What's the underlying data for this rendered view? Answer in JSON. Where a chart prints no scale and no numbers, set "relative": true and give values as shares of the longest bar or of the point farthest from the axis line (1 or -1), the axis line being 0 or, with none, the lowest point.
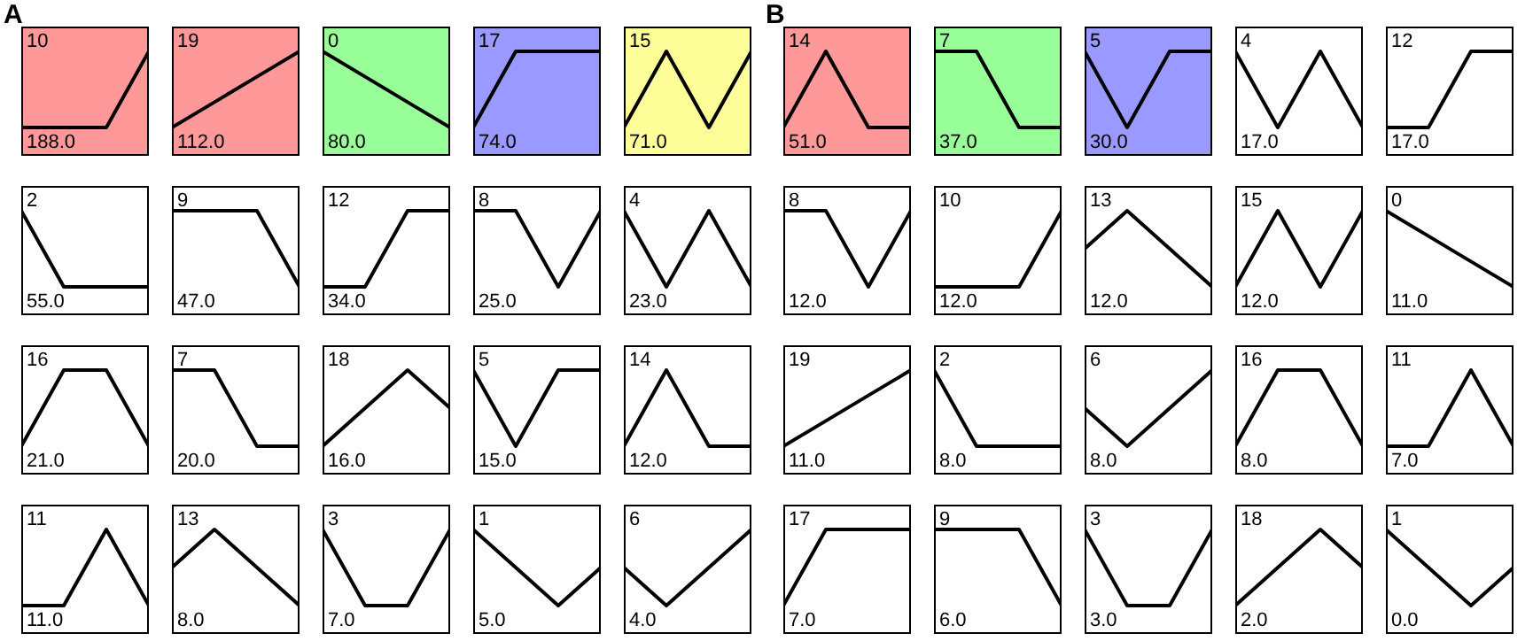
{
  "chart_data": [
    {
      "type": "line",
      "title": "A",
      "relative": true,
      "categories": [
        null,
        null,
        null,
        null
      ],
      "series": [
        {
          "color": "#000000",
          "values": [
            0,
            0,
            0,
            1
          ]
        }
      ],
      "annotations": [
        "10",
        "188.0"
      ],
      "legend": false,
      "marker": "none"
    },
    {
      "type": "line",
      "relative": true,
      "categories": [
        null,
        null,
        null,
        null
      ],
      "series": [
        {
          "color": "#000000",
          "values": [
            0,
            0.333,
            0.667,
            1
          ]
        }
      ],
      "annotations": [
        "19",
        "112.0"
      ],
      "legend": false,
      "marker": "none"
    },
    {
      "type": "line",
      "relative": true,
      "categories": [
        null,
        null,
        null,
        null
      ],
      "series": [
        {
          "color": "#000000",
          "values": [
            1,
            0.667,
            0.333,
            0
          ]
        }
      ],
      "annotations": [
        "0",
        "80.0"
      ],
      "legend": false,
      "marker": "none"
    },
    {
      "type": "line",
      "relative": true,
      "categories": [
        null,
        null,
        null,
        null
      ],
      "series": [
        {
          "color": "#000000",
          "values": [
            0,
            1,
            1,
            1
          ]
        }
      ],
      "annotations": [
        "17",
        "74.0"
      ],
      "legend": false,
      "marker": "none"
    },
    {
      "type": "line",
      "relative": true,
      "categories": [
        null,
        null,
        null,
        null
      ],
      "series": [
        {
          "color": "#000000",
          "values": [
            0,
            1,
            0,
            1
          ]
        }
      ],
      "annotations": [
        "15",
        "71.0"
      ],
      "legend": false,
      "marker": "none"
    },
    {
      "type": "line",
      "relative": true,
      "categories": [
        null,
        null,
        null,
        null
      ],
      "series": [
        {
          "color": "#000000",
          "values": [
            1,
            0,
            0,
            0
          ]
        }
      ],
      "annotations": [
        "2",
        "55.0"
      ],
      "legend": false,
      "marker": "none"
    },
    {
      "type": "line",
      "relative": true,
      "categories": [
        null,
        null,
        null,
        null
      ],
      "series": [
        {
          "color": "#000000",
          "values": [
            1,
            1,
            1,
            0
          ]
        }
      ],
      "annotations": [
        "9",
        "47.0"
      ],
      "legend": false,
      "marker": "none"
    },
    {
      "type": "line",
      "relative": true,
      "categories": [
        null,
        null,
        null,
        null
      ],
      "series": [
        {
          "color": "#000000",
          "values": [
            0,
            0,
            1,
            1
          ]
        }
      ],
      "annotations": [
        "12",
        "34.0"
      ],
      "legend": false,
      "marker": "none"
    },
    {
      "type": "line",
      "relative": true,
      "categories": [
        null,
        null,
        null,
        null
      ],
      "series": [
        {
          "color": "#000000",
          "values": [
            1,
            1,
            0,
            1
          ]
        }
      ],
      "annotations": [
        "8",
        "25.0"
      ],
      "legend": false,
      "marker": "none"
    },
    {
      "type": "line",
      "relative": true,
      "categories": [
        null,
        null,
        null,
        null
      ],
      "series": [
        {
          "color": "#000000",
          "values": [
            1,
            0,
            1,
            0
          ]
        }
      ],
      "annotations": [
        "4",
        "23.0"
      ],
      "legend": false,
      "marker": "none"
    },
    {
      "type": "line",
      "relative": true,
      "categories": [
        null,
        null,
        null,
        null
      ],
      "series": [
        {
          "color": "#000000",
          "values": [
            0,
            1,
            1,
            0
          ]
        }
      ],
      "annotations": [
        "16",
        "21.0"
      ],
      "legend": false,
      "marker": "none"
    },
    {
      "type": "line",
      "relative": true,
      "categories": [
        null,
        null,
        null,
        null
      ],
      "series": [
        {
          "color": "#000000",
          "values": [
            1,
            1,
            0,
            0
          ]
        }
      ],
      "annotations": [
        "7",
        "20.0"
      ],
      "legend": false,
      "marker": "none"
    },
    {
      "type": "line",
      "relative": true,
      "categories": [
        null,
        null,
        null,
        null
      ],
      "series": [
        {
          "color": "#000000",
          "values": [
            0,
            0.5,
            1,
            0.5
          ]
        }
      ],
      "annotations": [
        "18",
        "16.0"
      ],
      "legend": false,
      "marker": "none"
    },
    {
      "type": "line",
      "relative": true,
      "categories": [
        null,
        null,
        null,
        null
      ],
      "series": [
        {
          "color": "#000000",
          "values": [
            1,
            0,
            1,
            1
          ]
        }
      ],
      "annotations": [
        "5",
        "15.0"
      ],
      "legend": false,
      "marker": "none"
    },
    {
      "type": "line",
      "relative": true,
      "categories": [
        null,
        null,
        null,
        null
      ],
      "series": [
        {
          "color": "#000000",
          "values": [
            0,
            1,
            0,
            0
          ]
        }
      ],
      "annotations": [
        "14",
        "12.0"
      ],
      "legend": false,
      "marker": "none"
    },
    {
      "type": "line",
      "relative": true,
      "categories": [
        null,
        null,
        null,
        null
      ],
      "series": [
        {
          "color": "#000000",
          "values": [
            0,
            0,
            1,
            0
          ]
        }
      ],
      "annotations": [
        "11",
        "11.0"
      ],
      "legend": false,
      "marker": "none"
    },
    {
      "type": "line",
      "relative": true,
      "categories": [
        null,
        null,
        null,
        null
      ],
      "series": [
        {
          "color": "#000000",
          "values": [
            0.5,
            1,
            0.5,
            0
          ]
        }
      ],
      "annotations": [
        "13",
        "8.0"
      ],
      "legend": false,
      "marker": "none"
    },
    {
      "type": "line",
      "relative": true,
      "categories": [
        null,
        null,
        null,
        null
      ],
      "series": [
        {
          "color": "#000000",
          "values": [
            1,
            0,
            0,
            1
          ]
        }
      ],
      "annotations": [
        "3",
        "7.0"
      ],
      "legend": false,
      "marker": "none"
    },
    {
      "type": "line",
      "relative": true,
      "categories": [
        null,
        null,
        null,
        null
      ],
      "series": [
        {
          "color": "#000000",
          "values": [
            1,
            0.5,
            0,
            0.5
          ]
        }
      ],
      "annotations": [
        "1",
        "5.0"
      ],
      "legend": false,
      "marker": "none"
    },
    {
      "type": "line",
      "relative": true,
      "categories": [
        null,
        null,
        null,
        null
      ],
      "series": [
        {
          "color": "#000000",
          "values": [
            0.5,
            0,
            0.5,
            1
          ]
        }
      ],
      "annotations": [
        "6",
        "4.0"
      ],
      "legend": false,
      "marker": "none"
    },
    {
      "type": "line",
      "title": "B",
      "relative": true,
      "categories": [
        null,
        null,
        null,
        null
      ],
      "series": [
        {
          "color": "#000000",
          "values": [
            0,
            1,
            0,
            0
          ]
        }
      ],
      "annotations": [
        "14",
        "51.0"
      ],
      "legend": false,
      "marker": "none"
    },
    {
      "type": "line",
      "relative": true,
      "categories": [
        null,
        null,
        null,
        null
      ],
      "series": [
        {
          "color": "#000000",
          "values": [
            1,
            1,
            0,
            0
          ]
        }
      ],
      "annotations": [
        "7",
        "37.0"
      ],
      "legend": false,
      "marker": "none"
    },
    {
      "type": "line",
      "relative": true,
      "categories": [
        null,
        null,
        null,
        null
      ],
      "series": [
        {
          "color": "#000000",
          "values": [
            1,
            0,
            1,
            1
          ]
        }
      ],
      "annotations": [
        "5",
        "30.0"
      ],
      "legend": false,
      "marker": "none"
    },
    {
      "type": "line",
      "relative": true,
      "categories": [
        null,
        null,
        null,
        null
      ],
      "series": [
        {
          "color": "#000000",
          "values": [
            1,
            0,
            1,
            0
          ]
        }
      ],
      "annotations": [
        "4",
        "17.0"
      ],
      "legend": false,
      "marker": "none"
    },
    {
      "type": "line",
      "relative": true,
      "categories": [
        null,
        null,
        null,
        null
      ],
      "series": [
        {
          "color": "#000000",
          "values": [
            0,
            0,
            1,
            1
          ]
        }
      ],
      "annotations": [
        "12",
        "17.0"
      ],
      "legend": false,
      "marker": "none"
    },
    {
      "type": "line",
      "relative": true,
      "categories": [
        null,
        null,
        null,
        null
      ],
      "series": [
        {
          "color": "#000000",
          "values": [
            1,
            1,
            0,
            1
          ]
        }
      ],
      "annotations": [
        "8",
        "12.0"
      ],
      "legend": false,
      "marker": "none"
    },
    {
      "type": "line",
      "relative": true,
      "categories": [
        null,
        null,
        null,
        null
      ],
      "series": [
        {
          "color": "#000000",
          "values": [
            0,
            0,
            0,
            1
          ]
        }
      ],
      "annotations": [
        "10",
        "12.0"
      ],
      "legend": false,
      "marker": "none"
    },
    {
      "type": "line",
      "relative": true,
      "categories": [
        null,
        null,
        null,
        null
      ],
      "series": [
        {
          "color": "#000000",
          "values": [
            0.5,
            1,
            0.5,
            0
          ]
        }
      ],
      "annotations": [
        "13",
        "12.0"
      ],
      "legend": false,
      "marker": "none"
    },
    {
      "type": "line",
      "relative": true,
      "categories": [
        null,
        null,
        null,
        null
      ],
      "series": [
        {
          "color": "#000000",
          "values": [
            0,
            1,
            0,
            1
          ]
        }
      ],
      "annotations": [
        "15",
        "12.0"
      ],
      "legend": false,
      "marker": "none"
    },
    {
      "type": "line",
      "relative": true,
      "categories": [
        null,
        null,
        null,
        null
      ],
      "series": [
        {
          "color": "#000000",
          "values": [
            1,
            0.667,
            0.333,
            0
          ]
        }
      ],
      "annotations": [
        "0",
        "11.0"
      ],
      "legend": false,
      "marker": "none"
    },
    {
      "type": "line",
      "relative": true,
      "categories": [
        null,
        null,
        null,
        null
      ],
      "series": [
        {
          "color": "#000000",
          "values": [
            0,
            0.333,
            0.667,
            1
          ]
        }
      ],
      "annotations": [
        "19",
        "11.0"
      ],
      "legend": false,
      "marker": "none"
    },
    {
      "type": "line",
      "relative": true,
      "categories": [
        null,
        null,
        null,
        null
      ],
      "series": [
        {
          "color": "#000000",
          "values": [
            1,
            0,
            0,
            0
          ]
        }
      ],
      "annotations": [
        "2",
        "8.0"
      ],
      "legend": false,
      "marker": "none"
    },
    {
      "type": "line",
      "relative": true,
      "categories": [
        null,
        null,
        null,
        null
      ],
      "series": [
        {
          "color": "#000000",
          "values": [
            0.5,
            0,
            0.5,
            1
          ]
        }
      ],
      "annotations": [
        "6",
        "8.0"
      ],
      "legend": false,
      "marker": "none"
    },
    {
      "type": "line",
      "relative": true,
      "categories": [
        null,
        null,
        null,
        null
      ],
      "series": [
        {
          "color": "#000000",
          "values": [
            0,
            1,
            1,
            0
          ]
        }
      ],
      "annotations": [
        "16",
        "8.0"
      ],
      "legend": false,
      "marker": "none"
    },
    {
      "type": "line",
      "relative": true,
      "categories": [
        null,
        null,
        null,
        null
      ],
      "series": [
        {
          "color": "#000000",
          "values": [
            0,
            0,
            1,
            0
          ]
        }
      ],
      "annotations": [
        "11",
        "7.0"
      ],
      "legend": false,
      "marker": "none"
    },
    {
      "type": "line",
      "relative": true,
      "categories": [
        null,
        null,
        null,
        null
      ],
      "series": [
        {
          "color": "#000000",
          "values": [
            0,
            1,
            1,
            1
          ]
        }
      ],
      "annotations": [
        "17",
        "7.0"
      ],
      "legend": false,
      "marker": "none"
    },
    {
      "type": "line",
      "relative": true,
      "categories": [
        null,
        null,
        null,
        null
      ],
      "series": [
        {
          "color": "#000000",
          "values": [
            1,
            1,
            1,
            0
          ]
        }
      ],
      "annotations": [
        "9",
        "6.0"
      ],
      "legend": false,
      "marker": "none"
    },
    {
      "type": "line",
      "relative": true,
      "categories": [
        null,
        null,
        null,
        null
      ],
      "series": [
        {
          "color": "#000000",
          "values": [
            1,
            0,
            0,
            1
          ]
        }
      ],
      "annotations": [
        "3",
        "3.0"
      ],
      "legend": false,
      "marker": "none"
    },
    {
      "type": "line",
      "relative": true,
      "categories": [
        null,
        null,
        null,
        null
      ],
      "series": [
        {
          "color": "#000000",
          "values": [
            0,
            0.5,
            1,
            0.5
          ]
        }
      ],
      "annotations": [
        "18",
        "2.0"
      ],
      "legend": false,
      "marker": "none"
    },
    {
      "type": "line",
      "relative": true,
      "categories": [
        null,
        null,
        null,
        null
      ],
      "series": [
        {
          "color": "#000000",
          "values": [
            1,
            0.5,
            0,
            0.5
          ]
        }
      ],
      "annotations": [
        "1",
        "0.0"
      ],
      "legend": false,
      "marker": "none"
    }
  ]
}
